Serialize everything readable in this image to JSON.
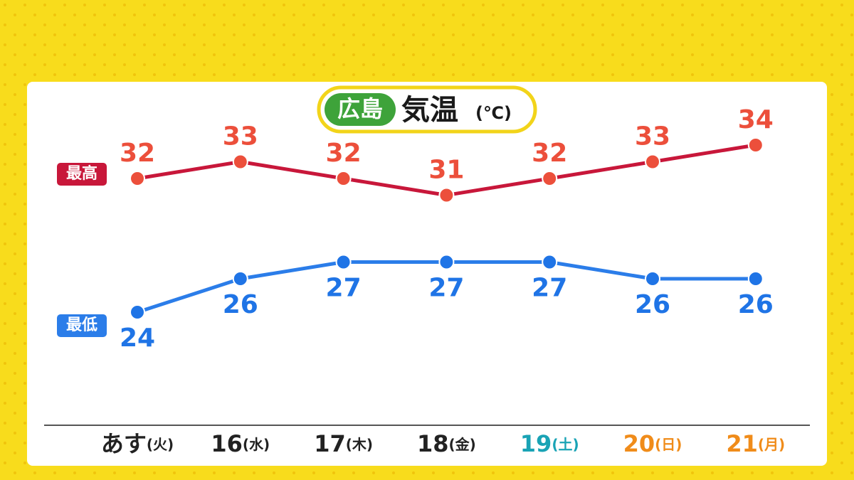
{
  "chart_data": {
    "type": "line",
    "region": "広島",
    "title": "気温",
    "unit": "(℃)",
    "categories": [
      "あす(火)",
      "16(水)",
      "17(木)",
      "18(金)",
      "19(土)",
      "20(日)",
      "21(月)"
    ],
    "category_colors": [
      "#222222",
      "#222222",
      "#222222",
      "#222222",
      "#19a3b5",
      "#f08c1a",
      "#f08c1a"
    ],
    "series": [
      {
        "name": "最高",
        "color": "#c8173a",
        "point_color": "#ec4f3b",
        "values": [
          32,
          33,
          32,
          31,
          32,
          33,
          34
        ]
      },
      {
        "name": "最低",
        "color": "#2b7de9",
        "point_color": "#1f74e6",
        "values": [
          24,
          26,
          27,
          27,
          27,
          26,
          26
        ]
      }
    ]
  }
}
